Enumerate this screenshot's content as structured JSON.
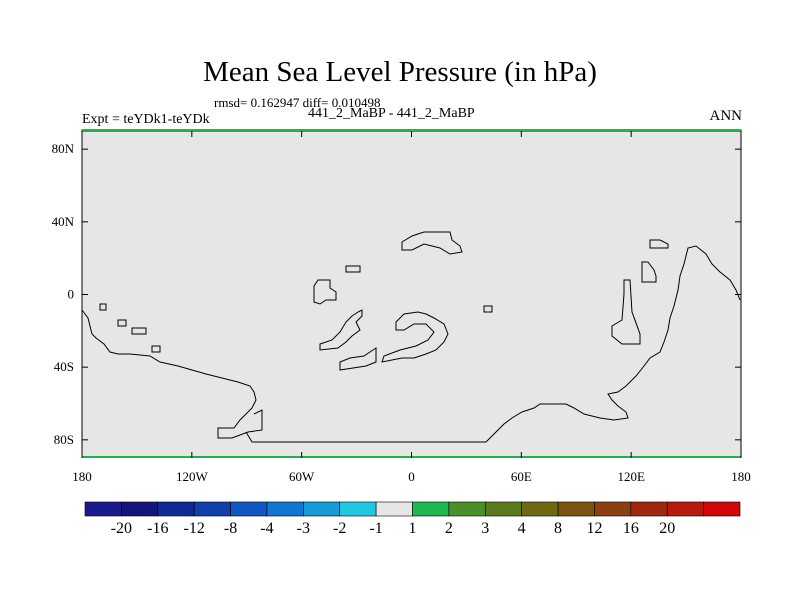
{
  "header": {
    "title": "Mean Sea Level Pressure (in hPa)",
    "stats": "rmsd= 0.162947 diff= 0.010498",
    "experiment": "Expt = teYDk1-teYDk",
    "cases": "441_2_MaBP - 441_2_MaBP",
    "season": "ANN"
  },
  "map": {
    "lon_ticks": [
      {
        "value": -180,
        "label": "180"
      },
      {
        "value": -120,
        "label": "120W"
      },
      {
        "value": -60,
        "label": "60W"
      },
      {
        "value": 0,
        "label": "0"
      },
      {
        "value": 60,
        "label": "60E"
      },
      {
        "value": 120,
        "label": "120E"
      },
      {
        "value": 180,
        "label": "180"
      }
    ],
    "lat_ticks": [
      {
        "value": 80,
        "label": "80N"
      },
      {
        "value": 40,
        "label": "40N"
      },
      {
        "value": 0,
        "label": "0"
      },
      {
        "value": -40,
        "label": "40S"
      },
      {
        "value": -80,
        "label": "80S"
      }
    ],
    "lon_range": [
      -180,
      180
    ],
    "lat_range": [
      -90,
      90
    ],
    "fill_color": "#e6e6e6",
    "edge_color": "#1fb34a"
  },
  "colorbar": {
    "colors": [
      "#1a1a8c",
      "#14147a",
      "#0f2a96",
      "#1040a8",
      "#0f58c2",
      "#1175d1",
      "#189cd8",
      "#1ec8e0",
      "#e6e6e6",
      "#20b850",
      "#4c8f2a",
      "#5b7a1e",
      "#6e6a14",
      "#7a5510",
      "#8a4010",
      "#a02810",
      "#b81a10",
      "#d00808"
    ],
    "labels": [
      "-20",
      "-16",
      "-12",
      "-8",
      "-4",
      "-3",
      "-2",
      "-1",
      "1",
      "2",
      "3",
      "4",
      "8",
      "12",
      "16",
      "20"
    ]
  }
}
